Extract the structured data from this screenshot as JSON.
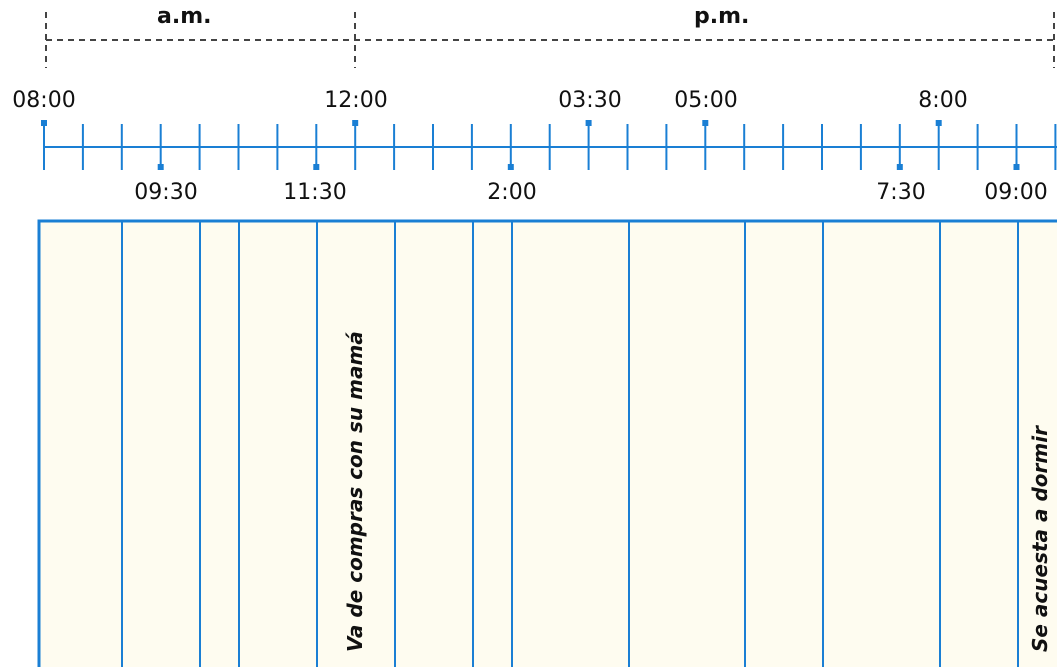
{
  "periods": [
    {
      "id": "am",
      "label": "a.m."
    },
    {
      "id": "pm",
      "label": "p.m."
    }
  ],
  "timeline": {
    "top_labels": [
      "08:00",
      "12:00",
      "03:30",
      "05:00",
      "8:00"
    ],
    "bottom_labels": [
      "09:30",
      "11:30",
      "2:00",
      "7:30",
      "09:00"
    ]
  },
  "activities": [
    {
      "id": "shopping",
      "text": "Va de compras con su mamá"
    },
    {
      "id": "sleep",
      "text": "Se acuesta a dormir"
    }
  ],
  "colors": {
    "line": "#1a7fd4",
    "dash": "#444444",
    "column_fill": "#fefcf0"
  }
}
